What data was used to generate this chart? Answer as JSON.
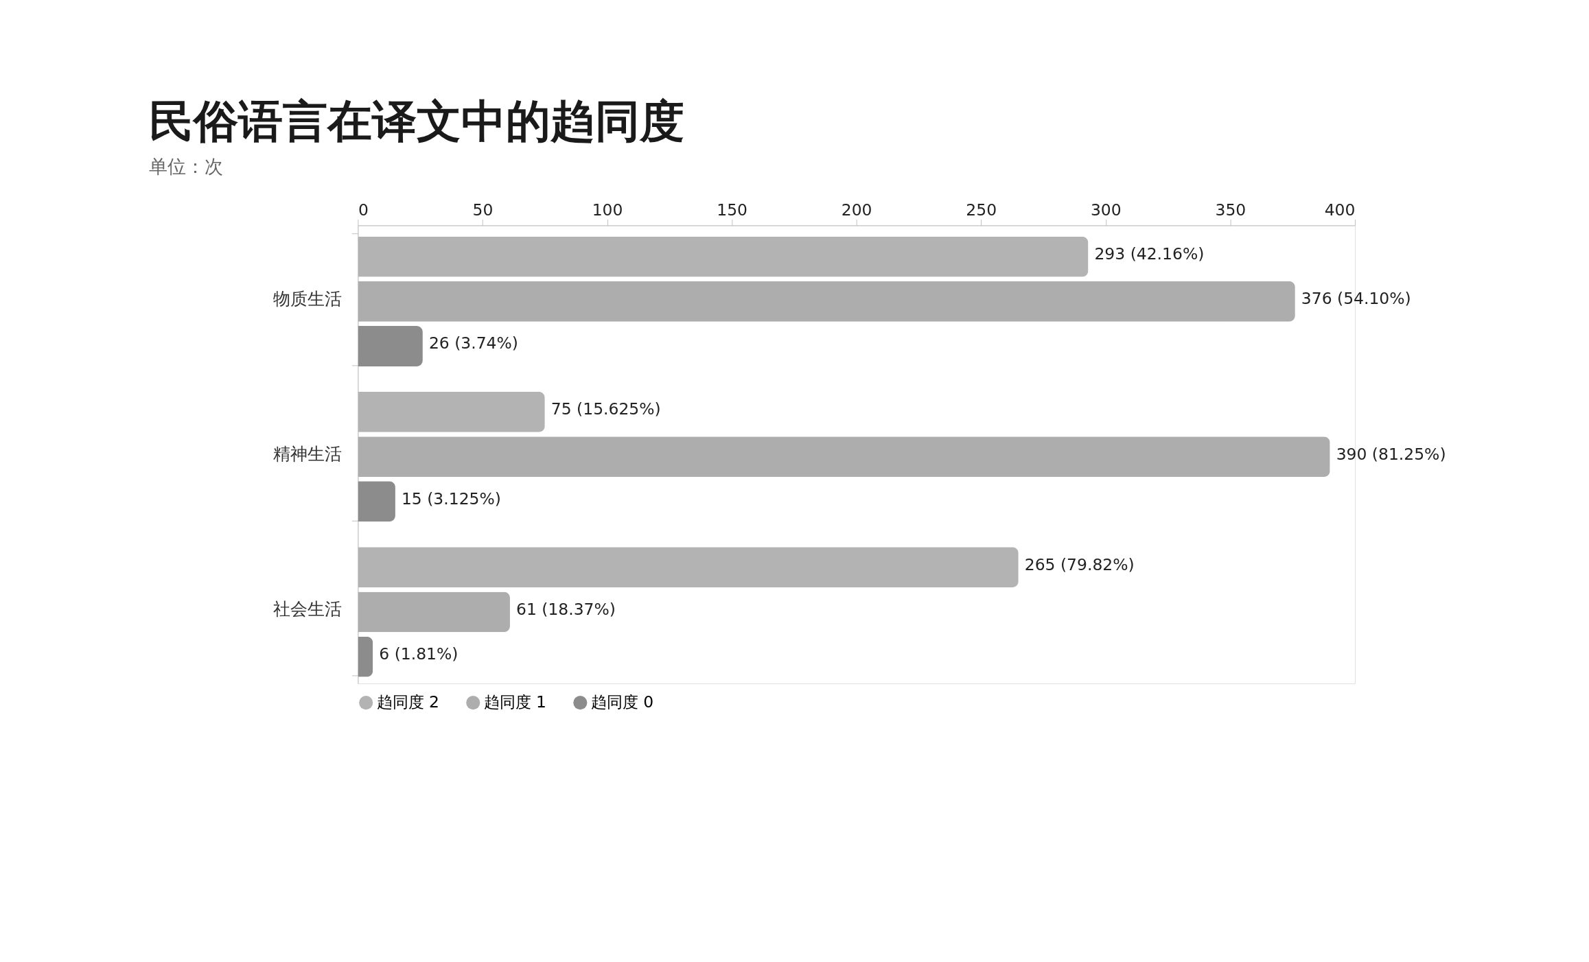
{
  "chart_data": {
    "type": "bar",
    "orientation": "horizontal",
    "title": "民俗语言在译文中的趋同度",
    "subtitle": "单位：次",
    "categories": [
      "物质生活",
      "精神生活",
      "社会生活"
    ],
    "series": [
      {
        "name": "趋同度 2",
        "color": "#b3b3b3",
        "values": [
          293,
          75,
          265
        ],
        "value_labels": [
          "293 (42.16%)",
          "75 (15.625%)",
          "265 (79.82%)"
        ]
      },
      {
        "name": "趋同度 1",
        "color": "#adadad",
        "values": [
          376,
          390,
          61
        ],
        "value_labels": [
          "376 (54.10%)",
          "390 (81.25%)",
          "61 (18.37%)"
        ]
      },
      {
        "name": "趋同度 0",
        "color": "#8c8c8c",
        "values": [
          26,
          15,
          6
        ],
        "value_labels": [
          "26 (3.74%)",
          "15 (3.125%)",
          "6 (1.81%)"
        ]
      }
    ],
    "xlim": [
      0,
      400
    ],
    "xticks": [
      0,
      50,
      100,
      150,
      200,
      250,
      300,
      350,
      400
    ],
    "grid": false,
    "legend": "bottom"
  }
}
